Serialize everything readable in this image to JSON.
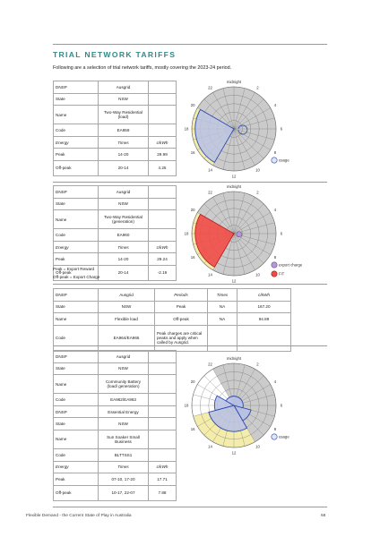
{
  "heading": "TRIAL NETWORK TARIFFS",
  "intro": "Following are a selection of trial network tariffs, mostly covering the 2023-24 period.",
  "block1": {
    "rows": [
      [
        "DNSP",
        "Ausgrid",
        ""
      ],
      [
        "State",
        "NSW",
        ""
      ],
      [
        "Name",
        "Two-Way Residential (load)",
        ""
      ],
      [
        "Code",
        "EA959",
        ""
      ],
      [
        "Energy",
        "Times",
        "c/kWh"
      ],
      [
        "Peak",
        "14-20",
        "29.99"
      ],
      [
        "Off-peak",
        "20-14",
        "4.25"
      ]
    ],
    "legend": [
      "usage"
    ]
  },
  "block2": {
    "rows": [
      [
        "DNSP",
        "Ausgrid",
        ""
      ],
      [
        "State",
        "NSW",
        ""
      ],
      [
        "Name",
        "Two-Way Residential (generation)",
        ""
      ],
      [
        "Code",
        "EA960",
        ""
      ],
      [
        "Energy",
        "Times",
        "c/kWh"
      ],
      [
        "Peak",
        "14-20",
        "29.24"
      ],
      [
        "Off-peak",
        "20-14",
        "-2.19"
      ]
    ],
    "notes": [
      "Peak = Export Reward",
      "Off-peak = Export Charge"
    ],
    "legend": [
      "export charge",
      "FiT"
    ]
  },
  "block3": {
    "header": [
      "DNSP",
      "Ausgrid",
      "Periods",
      "Times",
      "c/kWh"
    ],
    "rows": [
      [
        "State",
        "NSW",
        "Peak",
        "NA",
        "167.20"
      ],
      [
        "Name",
        "Flexible load",
        "Off-peak",
        "NA",
        "94.89"
      ]
    ],
    "code_label": "Code",
    "code_value": "EA964/EA965",
    "code_note": "Peak charges are critical peaks and apply when called by Ausgrid."
  },
  "block4": {
    "rows": [
      [
        "DNSP",
        "Ausgrid",
        ""
      ],
      [
        "State",
        "NSW",
        ""
      ],
      [
        "Name",
        "Community Battery (load/ generation)",
        ""
      ],
      [
        "Code",
        "EA962/EA963",
        ""
      ],
      [
        "DNSP",
        "Essential Energy",
        ""
      ],
      [
        "State",
        "NSW",
        ""
      ],
      [
        "Name",
        "Sun Soaker Small Business",
        ""
      ],
      [
        "Code",
        "BLTTSS1",
        ""
      ],
      [
        "Energy",
        "Times",
        "c/kWh"
      ],
      [
        "Peak",
        "07-10, 17-20",
        "17.71"
      ],
      [
        "Off-peak",
        "10-17, 22-07",
        "7.88"
      ]
    ],
    "legend": [
      "usage"
    ]
  },
  "clock": {
    "top_label": "midnight",
    "hour_labels": [
      [
        "22",
        22
      ],
      [
        "2",
        2
      ],
      [
        "20",
        20
      ],
      [
        "4",
        4
      ],
      [
        "18",
        18
      ],
      [
        "6",
        6
      ],
      [
        "16",
        16
      ],
      [
        "8",
        8
      ],
      [
        "14",
        14
      ],
      [
        "10",
        10
      ],
      [
        "12",
        12
      ]
    ]
  },
  "colors": {
    "grid": "#6f6f6f",
    "sector_fill": "#cbcbcb",
    "yellow": "#f4ecaa",
    "blue_fill": "#b7c1e6",
    "blue_line": "#2c4bb0",
    "red_fill": "#ee4a4a",
    "red_line": "#b11b1b",
    "purple_fill": "#b59ad1"
  },
  "footer": {
    "left": "Flexible Demand - the Current State of Play in Australia",
    "page": "68"
  }
}
